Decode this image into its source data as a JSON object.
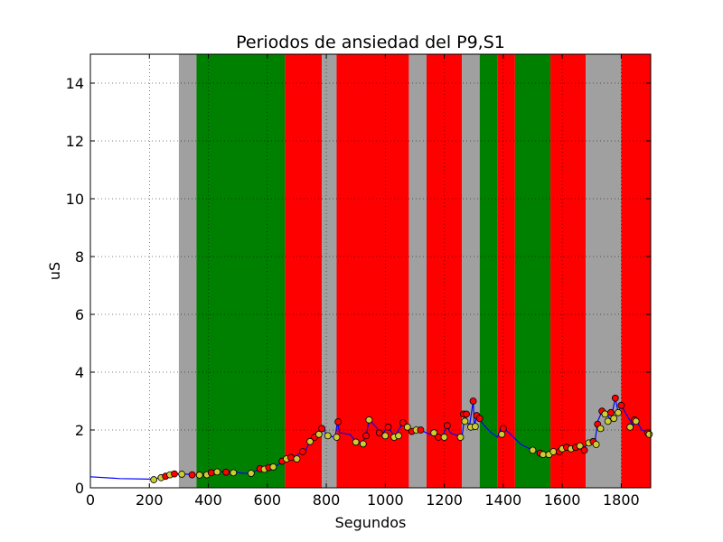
{
  "chart_data": {
    "type": "line",
    "title": "Periodos de ansiedad del P9,S1",
    "xlabel": "Segundos",
    "ylabel": "uS",
    "xlim": [
      0,
      1900
    ],
    "ylim": [
      0,
      15
    ],
    "xticks": [
      0,
      200,
      400,
      600,
      800,
      1000,
      1200,
      1400,
      1600,
      1800
    ],
    "yticks": [
      0,
      2,
      4,
      6,
      8,
      10,
      12,
      14
    ],
    "grid": true,
    "band_colors": {
      "gray": "#a0a0a0",
      "green": "#008000",
      "red": "#ff0000"
    },
    "line_color": "#0000ff",
    "marker_colors": {
      "peak": "#ff0000",
      "valley": "#cccc33"
    },
    "bands": [
      {
        "start": 300,
        "end": 360,
        "color": "gray"
      },
      {
        "start": 360,
        "end": 660,
        "color": "green"
      },
      {
        "start": 660,
        "end": 785,
        "color": "red"
      },
      {
        "start": 785,
        "end": 835,
        "color": "gray"
      },
      {
        "start": 835,
        "end": 1080,
        "color": "red"
      },
      {
        "start": 1080,
        "end": 1140,
        "color": "gray"
      },
      {
        "start": 1140,
        "end": 1260,
        "color": "red"
      },
      {
        "start": 1260,
        "end": 1320,
        "color": "gray"
      },
      {
        "start": 1320,
        "end": 1380,
        "color": "green"
      },
      {
        "start": 1380,
        "end": 1440,
        "color": "red"
      },
      {
        "start": 1440,
        "end": 1560,
        "color": "green"
      },
      {
        "start": 1560,
        "end": 1680,
        "color": "red"
      },
      {
        "start": 1680,
        "end": 1800,
        "color": "gray"
      },
      {
        "start": 1800,
        "end": 1900,
        "color": "red"
      }
    ],
    "series": [
      {
        "values": [
          [
            0,
            0.38
          ],
          [
            100,
            0.32
          ],
          [
            200,
            0.3
          ],
          [
            220,
            0.3
          ],
          [
            240,
            0.38
          ],
          [
            260,
            0.44
          ],
          [
            280,
            0.48
          ],
          [
            300,
            0.48
          ],
          [
            330,
            0.47
          ],
          [
            360,
            0.45
          ],
          [
            380,
            0.45
          ],
          [
            400,
            0.5
          ],
          [
            420,
            0.56
          ],
          [
            440,
            0.56
          ],
          [
            460,
            0.54
          ],
          [
            490,
            0.54
          ],
          [
            520,
            0.5
          ],
          [
            550,
            0.52
          ],
          [
            570,
            0.64
          ],
          [
            590,
            0.66
          ],
          [
            610,
            0.7
          ],
          [
            630,
            0.74
          ],
          [
            650,
            0.92
          ],
          [
            670,
            1.05
          ],
          [
            690,
            1.05
          ],
          [
            710,
            1.2
          ],
          [
            730,
            1.3
          ],
          [
            745,
            1.62
          ],
          [
            760,
            1.75
          ],
          [
            775,
            1.95
          ],
          [
            790,
            2.08
          ],
          [
            800,
            1.82
          ],
          [
            815,
            1.78
          ],
          [
            830,
            1.75
          ],
          [
            838,
            2.3
          ],
          [
            845,
            1.9
          ],
          [
            880,
            1.85
          ],
          [
            900,
            1.6
          ],
          [
            920,
            1.55
          ],
          [
            935,
            1.8
          ],
          [
            945,
            2.35
          ],
          [
            960,
            2.2
          ],
          [
            990,
            1.85
          ],
          [
            1010,
            2.15
          ],
          [
            1030,
            1.75
          ],
          [
            1060,
            2.25
          ],
          [
            1090,
            1.95
          ],
          [
            1110,
            2.0
          ],
          [
            1130,
            1.95
          ],
          [
            1150,
            1.85
          ],
          [
            1170,
            1.9
          ],
          [
            1190,
            1.7
          ],
          [
            1210,
            2.15
          ],
          [
            1220,
            1.9
          ],
          [
            1260,
            1.75
          ],
          [
            1270,
            2.55
          ],
          [
            1285,
            2.1
          ],
          [
            1298,
            3.0
          ],
          [
            1302,
            2.1
          ],
          [
            1310,
            2.5
          ],
          [
            1320,
            2.35
          ],
          [
            1340,
            2.1
          ],
          [
            1360,
            1.9
          ],
          [
            1380,
            1.75
          ],
          [
            1395,
            2.1
          ],
          [
            1420,
            1.9
          ],
          [
            1460,
            1.5
          ],
          [
            1500,
            1.3
          ],
          [
            1530,
            1.2
          ],
          [
            1550,
            1.15
          ],
          [
            1570,
            1.25
          ],
          [
            1590,
            1.25
          ],
          [
            1610,
            1.35
          ],
          [
            1630,
            1.4
          ],
          [
            1650,
            1.45
          ],
          [
            1670,
            1.35
          ],
          [
            1690,
            1.55
          ],
          [
            1710,
            1.5
          ],
          [
            1720,
            2.3
          ],
          [
            1735,
            2.65
          ],
          [
            1750,
            2.55
          ],
          [
            1765,
            2.35
          ],
          [
            1780,
            3.1
          ],
          [
            1790,
            2.6
          ],
          [
            1800,
            2.85
          ],
          [
            1820,
            2.5
          ],
          [
            1840,
            2.15
          ],
          [
            1850,
            2.35
          ],
          [
            1870,
            2.0
          ],
          [
            1895,
            1.9
          ]
        ]
      }
    ],
    "markers": [
      {
        "x": 215,
        "y": 0.28,
        "kind": "valley"
      },
      {
        "x": 240,
        "y": 0.35,
        "kind": "valley"
      },
      {
        "x": 255,
        "y": 0.4,
        "kind": "peak"
      },
      {
        "x": 270,
        "y": 0.45,
        "kind": "valley"
      },
      {
        "x": 285,
        "y": 0.48,
        "kind": "peak"
      },
      {
        "x": 310,
        "y": 0.47,
        "kind": "valley"
      },
      {
        "x": 345,
        "y": 0.45,
        "kind": "peak"
      },
      {
        "x": 370,
        "y": 0.44,
        "kind": "valley"
      },
      {
        "x": 395,
        "y": 0.45,
        "kind": "valley"
      },
      {
        "x": 410,
        "y": 0.52,
        "kind": "peak"
      },
      {
        "x": 430,
        "y": 0.55,
        "kind": "valley"
      },
      {
        "x": 460,
        "y": 0.54,
        "kind": "peak"
      },
      {
        "x": 485,
        "y": 0.52,
        "kind": "valley"
      },
      {
        "x": 545,
        "y": 0.5,
        "kind": "valley"
      },
      {
        "x": 575,
        "y": 0.66,
        "kind": "peak"
      },
      {
        "x": 590,
        "y": 0.64,
        "kind": "valley"
      },
      {
        "x": 605,
        "y": 0.7,
        "kind": "peak"
      },
      {
        "x": 620,
        "y": 0.72,
        "kind": "valley"
      },
      {
        "x": 650,
        "y": 0.92,
        "kind": "peak"
      },
      {
        "x": 665,
        "y": 1.0,
        "kind": "valley"
      },
      {
        "x": 680,
        "y": 1.05,
        "kind": "peak"
      },
      {
        "x": 700,
        "y": 1.0,
        "kind": "valley"
      },
      {
        "x": 720,
        "y": 1.25,
        "kind": "peak"
      },
      {
        "x": 745,
        "y": 1.6,
        "kind": "valley"
      },
      {
        "x": 760,
        "y": 1.75,
        "kind": "peak"
      },
      {
        "x": 775,
        "y": 1.85,
        "kind": "valley"
      },
      {
        "x": 785,
        "y": 2.05,
        "kind": "peak"
      },
      {
        "x": 805,
        "y": 1.8,
        "kind": "valley"
      },
      {
        "x": 835,
        "y": 1.75,
        "kind": "valley"
      },
      {
        "x": 840,
        "y": 2.28,
        "kind": "peak"
      },
      {
        "x": 900,
        "y": 1.58,
        "kind": "valley"
      },
      {
        "x": 925,
        "y": 1.52,
        "kind": "valley"
      },
      {
        "x": 935,
        "y": 1.8,
        "kind": "peak"
      },
      {
        "x": 945,
        "y": 2.35,
        "kind": "valley"
      },
      {
        "x": 980,
        "y": 1.9,
        "kind": "peak"
      },
      {
        "x": 1000,
        "y": 1.8,
        "kind": "valley"
      },
      {
        "x": 1010,
        "y": 2.1,
        "kind": "peak"
      },
      {
        "x": 1030,
        "y": 1.75,
        "kind": "valley"
      },
      {
        "x": 1045,
        "y": 1.8,
        "kind": "valley"
      },
      {
        "x": 1060,
        "y": 2.25,
        "kind": "peak"
      },
      {
        "x": 1075,
        "y": 2.1,
        "kind": "valley"
      },
      {
        "x": 1090,
        "y": 1.95,
        "kind": "peak"
      },
      {
        "x": 1105,
        "y": 2.0,
        "kind": "valley"
      },
      {
        "x": 1120,
        "y": 2.0,
        "kind": "peak"
      },
      {
        "x": 1165,
        "y": 1.9,
        "kind": "valley"
      },
      {
        "x": 1180,
        "y": 1.75,
        "kind": "peak"
      },
      {
        "x": 1200,
        "y": 1.75,
        "kind": "valley"
      },
      {
        "x": 1210,
        "y": 2.15,
        "kind": "peak"
      },
      {
        "x": 1255,
        "y": 1.75,
        "kind": "valley"
      },
      {
        "x": 1265,
        "y": 2.55,
        "kind": "peak"
      },
      {
        "x": 1275,
        "y": 2.55,
        "kind": "peak"
      },
      {
        "x": 1270,
        "y": 2.3,
        "kind": "valley"
      },
      {
        "x": 1290,
        "y": 2.1,
        "kind": "valley"
      },
      {
        "x": 1298,
        "y": 3.0,
        "kind": "peak"
      },
      {
        "x": 1305,
        "y": 2.12,
        "kind": "valley"
      },
      {
        "x": 1310,
        "y": 2.5,
        "kind": "peak"
      },
      {
        "x": 1320,
        "y": 2.4,
        "kind": "peak"
      },
      {
        "x": 1400,
        "y": 2.05,
        "kind": "peak"
      },
      {
        "x": 1395,
        "y": 1.85,
        "kind": "valley"
      },
      {
        "x": 1500,
        "y": 1.3,
        "kind": "valley"
      },
      {
        "x": 1525,
        "y": 1.2,
        "kind": "peak"
      },
      {
        "x": 1535,
        "y": 1.15,
        "kind": "valley"
      },
      {
        "x": 1555,
        "y": 1.15,
        "kind": "valley"
      },
      {
        "x": 1570,
        "y": 1.25,
        "kind": "valley"
      },
      {
        "x": 1590,
        "y": 1.25,
        "kind": "peak"
      },
      {
        "x": 1600,
        "y": 1.35,
        "kind": "valley"
      },
      {
        "x": 1615,
        "y": 1.4,
        "kind": "peak"
      },
      {
        "x": 1630,
        "y": 1.35,
        "kind": "valley"
      },
      {
        "x": 1645,
        "y": 1.4,
        "kind": "peak"
      },
      {
        "x": 1660,
        "y": 1.45,
        "kind": "valley"
      },
      {
        "x": 1675,
        "y": 1.3,
        "kind": "peak"
      },
      {
        "x": 1690,
        "y": 1.55,
        "kind": "valley"
      },
      {
        "x": 1705,
        "y": 1.6,
        "kind": "peak"
      },
      {
        "x": 1715,
        "y": 1.5,
        "kind": "valley"
      },
      {
        "x": 1720,
        "y": 2.2,
        "kind": "peak"
      },
      {
        "x": 1730,
        "y": 2.05,
        "kind": "valley"
      },
      {
        "x": 1735,
        "y": 2.65,
        "kind": "peak"
      },
      {
        "x": 1745,
        "y": 2.55,
        "kind": "valley"
      },
      {
        "x": 1755,
        "y": 2.3,
        "kind": "valley"
      },
      {
        "x": 1765,
        "y": 2.6,
        "kind": "peak"
      },
      {
        "x": 1775,
        "y": 2.4,
        "kind": "valley"
      },
      {
        "x": 1780,
        "y": 3.1,
        "kind": "peak"
      },
      {
        "x": 1790,
        "y": 2.6,
        "kind": "valley"
      },
      {
        "x": 1800,
        "y": 2.85,
        "kind": "peak"
      },
      {
        "x": 1830,
        "y": 2.1,
        "kind": "valley"
      },
      {
        "x": 1845,
        "y": 2.35,
        "kind": "peak"
      },
      {
        "x": 1850,
        "y": 2.3,
        "kind": "valley"
      },
      {
        "x": 1890,
        "y": 1.9,
        "kind": "peak"
      },
      {
        "x": 1895,
        "y": 1.85,
        "kind": "valley"
      }
    ]
  }
}
